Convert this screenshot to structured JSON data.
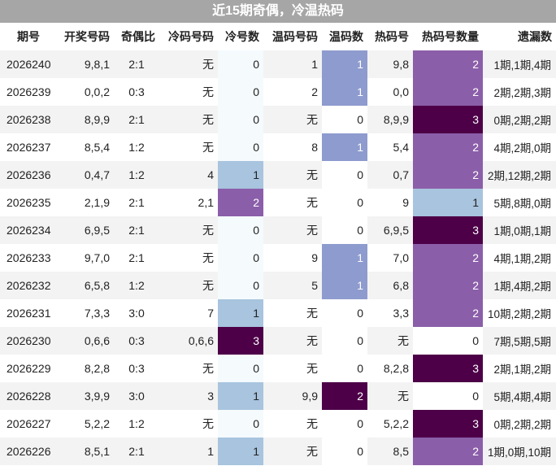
{
  "title": "近15期奇偶，冷温热码",
  "headers": [
    "期号",
    "开奖号码",
    "奇偶比",
    "冷码号码",
    "冷号数",
    "温码号码",
    "温码数",
    "热码号",
    "热码号数量",
    "遗漏数"
  ],
  "rows": [
    [
      "2026240",
      "9,8,1",
      "2:1",
      "无",
      "0",
      "1",
      "1",
      "9,8",
      "2",
      "1期,1期,4期"
    ],
    [
      "2026239",
      "0,0,2",
      "0:3",
      "无",
      "0",
      "2",
      "1",
      "0,0",
      "2",
      "2期,2期,3期"
    ],
    [
      "2026238",
      "8,9,9",
      "2:1",
      "无",
      "0",
      "无",
      "0",
      "8,9,9",
      "3",
      "0期,2期,2期"
    ],
    [
      "2026237",
      "8,5,4",
      "1:2",
      "无",
      "0",
      "8",
      "1",
      "5,4",
      "2",
      "4期,2期,0期"
    ],
    [
      "2026236",
      "0,4,7",
      "1:2",
      "4",
      "1",
      "无",
      "0",
      "0,7",
      "2",
      "2期,12期,2期"
    ],
    [
      "2026235",
      "2,1,9",
      "2:1",
      "2,1",
      "2",
      "无",
      "0",
      "9",
      "1",
      "5期,8期,0期"
    ],
    [
      "2026234",
      "6,9,5",
      "2:1",
      "无",
      "0",
      "无",
      "0",
      "6,9,5",
      "3",
      "1期,0期,1期"
    ],
    [
      "2026233",
      "9,7,0",
      "2:1",
      "无",
      "0",
      "9",
      "1",
      "7,0",
      "2",
      "4期,1期,2期"
    ],
    [
      "2026232",
      "6,5,8",
      "1:2",
      "无",
      "0",
      "5",
      "1",
      "6,8",
      "2",
      "1期,4期,2期"
    ],
    [
      "2026231",
      "7,3,3",
      "3:0",
      "7",
      "1",
      "无",
      "0",
      "3,3",
      "2",
      "10期,2期,2期"
    ],
    [
      "2026230",
      "0,6,6",
      "0:3",
      "0,6,6",
      "3",
      "无",
      "0",
      "无",
      "0",
      "7期,5期,5期"
    ],
    [
      "2026229",
      "8,2,8",
      "0:3",
      "无",
      "0",
      "无",
      "0",
      "8,2,8",
      "3",
      "2期,1期,2期"
    ],
    [
      "2026228",
      "3,9,9",
      "3:0",
      "3",
      "1",
      "9,9",
      "2",
      "无",
      "0",
      "5期,4期,4期"
    ],
    [
      "2026227",
      "5,2,2",
      "1:2",
      "无",
      "0",
      "无",
      "0",
      "5,2,2",
      "3",
      "0期,2期,2期"
    ],
    [
      "2026226",
      "8,5,1",
      "2:1",
      "1",
      "1",
      "无",
      "0",
      "8,5",
      "2",
      "1期,0期,10期"
    ]
  ],
  "colors": {
    "title_bg": "#a6a6a6",
    "count_1_cold": "#a8c4de",
    "count_2_cold": "#8b5ea9",
    "count_3_cold": "#4d0048",
    "count_1_warm": "#8e9bce",
    "count_2_warm": "#4d0048",
    "count_1_hot": "#a8c4de",
    "count_2_hot": "#8b5ea9",
    "count_3_hot": "#4d0048"
  }
}
